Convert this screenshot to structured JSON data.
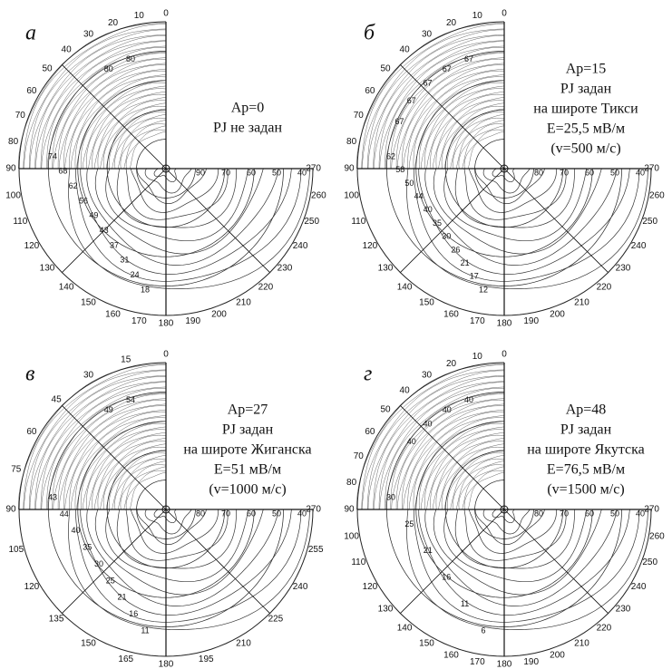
{
  "panels": [
    {
      "letter": "а",
      "annotation": [
        "Ap=0",
        "PJ не задан"
      ],
      "angles": [
        0,
        10,
        20,
        30,
        40,
        50,
        60,
        70,
        80,
        90,
        100,
        110,
        120,
        130,
        140,
        150,
        160,
        170,
        180,
        190,
        200,
        210,
        220,
        230,
        240,
        250,
        260,
        270
      ],
      "contour_labels": {
        "top": [
          "80",
          "80"
        ],
        "left": [
          "74",
          "68",
          "62",
          "56",
          "49",
          "43",
          "37",
          "31",
          "24",
          "18"
        ],
        "right": [
          "90",
          "70",
          "60",
          "50",
          "40"
        ]
      }
    },
    {
      "letter": "б",
      "annotation": [
        "Ap=15",
        "PJ задан",
        "на широте Тикси",
        "E=25,5 мВ/м",
        "(v=500 м/с)"
      ],
      "angles": [
        0,
        10,
        20,
        30,
        40,
        50,
        60,
        70,
        80,
        90,
        100,
        110,
        120,
        130,
        140,
        150,
        160,
        170,
        180,
        190,
        200,
        210,
        220,
        230,
        240,
        250,
        260,
        270
      ],
      "contour_labels": {
        "top": [
          "67",
          "67",
          "67",
          "67",
          "67"
        ],
        "left": [
          "62",
          "58",
          "50",
          "44",
          "40",
          "35",
          "30",
          "26",
          "21",
          "17",
          "12"
        ],
        "right": [
          "80",
          "70",
          "60",
          "50",
          "40"
        ]
      }
    },
    {
      "letter": "в",
      "annotation": [
        "Ap=27",
        "PJ задан",
        "на широте Жиганска",
        "E=51 мВ/м",
        "(v=1000 м/с)"
      ],
      "angles": [
        0,
        15,
        30,
        45,
        60,
        75,
        90,
        105,
        120,
        135,
        150,
        165,
        180,
        195,
        210,
        225,
        240,
        255,
        270
      ],
      "contour_labels": {
        "top": [
          "54",
          "49"
        ],
        "left": [
          "43",
          "44",
          "40",
          "35",
          "30",
          "25",
          "21",
          "16",
          "11"
        ],
        "right": [
          "80",
          "70",
          "60",
          "50",
          "40"
        ]
      }
    },
    {
      "letter": "г",
      "annotation": [
        "Ap=48",
        "PJ задан",
        "на широте Якутска",
        "E=76,5 мВ/м",
        "(v=1500 м/с)"
      ],
      "angles": [
        0,
        10,
        20,
        30,
        40,
        50,
        60,
        70,
        80,
        90,
        100,
        110,
        120,
        130,
        140,
        150,
        160,
        170,
        180,
        190,
        200,
        210,
        220,
        230,
        240,
        250,
        260,
        270
      ],
      "contour_labels": {
        "top": [
          "40",
          "40",
          "40",
          "40"
        ],
        "left": [
          "30",
          "25",
          "21",
          "16",
          "11",
          "6"
        ],
        "right": [
          "80",
          "70",
          "60",
          "50",
          "40"
        ]
      }
    }
  ]
}
